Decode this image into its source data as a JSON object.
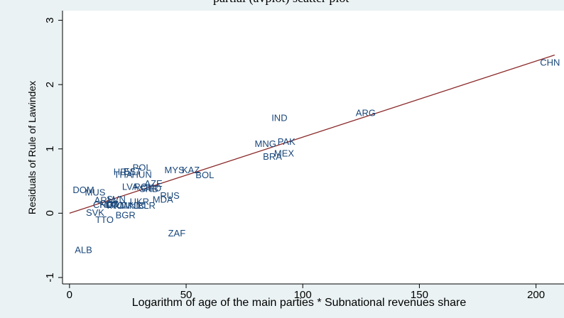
{
  "chart_data": {
    "type": "scatter",
    "title": "partial (avplot) scatter plot",
    "xlabel": "Logarithm of age of the main parties * Subnational revenues share",
    "ylabel": "Residuals of Rule of Lawindex",
    "xlim": [
      -3,
      212
    ],
    "ylim": [
      -1.1,
      3.15
    ],
    "x_ticks": [
      0,
      50,
      100,
      150,
      200
    ],
    "y_ticks": [
      -1,
      0,
      1,
      2,
      3
    ],
    "grid": false,
    "legend": "none",
    "colors": {
      "points": "#1a477a",
      "fit_line": "#8b2a2a",
      "background": "#eaf2f3",
      "plot_area": "#ffffff"
    },
    "fit_line": {
      "x": [
        0,
        208
      ],
      "y": [
        0.0,
        2.46
      ]
    },
    "points": [
      {
        "label": "CHN",
        "x": 206,
        "y": 2.33
      },
      {
        "label": "ARG",
        "x": 127,
        "y": 1.55
      },
      {
        "label": "IND",
        "x": 90,
        "y": 1.47
      },
      {
        "label": "PAK",
        "x": 93,
        "y": 1.1
      },
      {
        "label": "MNG",
        "x": 84,
        "y": 1.07
      },
      {
        "label": "MEX",
        "x": 92,
        "y": 0.92
      },
      {
        "label": "BRA",
        "x": 87,
        "y": 0.87
      },
      {
        "label": "BOL",
        "x": 58,
        "y": 0.58
      },
      {
        "label": "KAZ",
        "x": 52,
        "y": 0.66
      },
      {
        "label": "MYS",
        "x": 45,
        "y": 0.66
      },
      {
        "label": "POL",
        "x": 31,
        "y": 0.7
      },
      {
        "label": "EST",
        "x": 27,
        "y": 0.64
      },
      {
        "label": "HRV",
        "x": 23,
        "y": 0.63
      },
      {
        "label": "THA",
        "x": 23,
        "y": 0.59
      },
      {
        "label": "HUN",
        "x": 31,
        "y": 0.59
      },
      {
        "label": "AZE",
        "x": 36,
        "y": 0.45
      },
      {
        "label": "LVA",
        "x": 26,
        "y": 0.4
      },
      {
        "label": "ROU",
        "x": 32,
        "y": 0.4
      },
      {
        "label": "GEO",
        "x": 35,
        "y": 0.38
      },
      {
        "label": "SRB",
        "x": 34,
        "y": 0.37
      },
      {
        "label": "DOM",
        "x": 6,
        "y": 0.35
      },
      {
        "label": "MUS",
        "x": 11,
        "y": 0.31
      },
      {
        "label": "RUS",
        "x": 43,
        "y": 0.26
      },
      {
        "label": "MDA",
        "x": 40,
        "y": 0.2
      },
      {
        "label": "UKR",
        "x": 30,
        "y": 0.17
      },
      {
        "label": "SVN",
        "x": 20,
        "y": 0.21
      },
      {
        "label": "ARM",
        "x": 15,
        "y": 0.19
      },
      {
        "label": "CHL",
        "x": 14,
        "y": 0.12
      },
      {
        "label": "KGZ",
        "x": 17,
        "y": 0.13
      },
      {
        "label": "LTU",
        "x": 19,
        "y": 0.12
      },
      {
        "label": "PRT",
        "x": 20,
        "y": 0.11
      },
      {
        "label": "ROM",
        "x": 22,
        "y": 0.11
      },
      {
        "label": "MKD",
        "x": 26,
        "y": 0.11
      },
      {
        "label": "NIC",
        "x": 29,
        "y": 0.11
      },
      {
        "label": "BLR",
        "x": 33,
        "y": 0.11
      },
      {
        "label": "BGR",
        "x": 24,
        "y": -0.04
      },
      {
        "label": "SVK",
        "x": 11,
        "y": 0.0
      },
      {
        "label": "TTO",
        "x": 15,
        "y": -0.11
      },
      {
        "label": "ZAF",
        "x": 46,
        "y": -0.32
      },
      {
        "label": "ALB",
        "x": 6,
        "y": -0.58
      }
    ]
  }
}
